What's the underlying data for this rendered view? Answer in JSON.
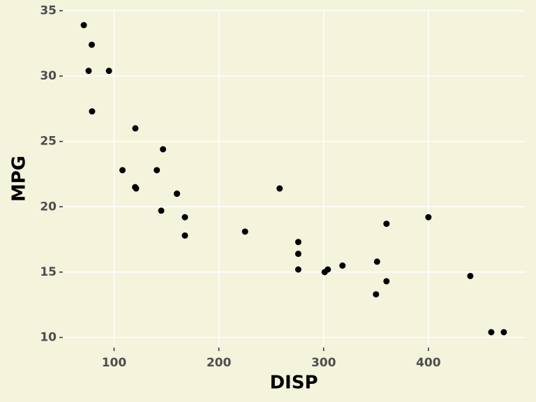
{
  "chart_data": {
    "type": "scatter",
    "x_label": "DISP",
    "y_label": "MPG",
    "color": "#000000",
    "background": "#f4f3dc",
    "grid": true,
    "x": [
      160,
      160,
      108,
      258,
      360,
      225,
      360,
      146.7,
      140.8,
      167.6,
      167.6,
      275.8,
      275.8,
      275.8,
      472,
      460,
      440,
      78.7,
      75.7,
      71.1,
      120.1,
      318,
      304,
      350,
      400,
      79,
      120.3,
      95.1,
      351,
      145,
      301,
      121
    ],
    "values": [
      21.0,
      21.0,
      22.8,
      21.4,
      18.7,
      18.1,
      14.3,
      24.4,
      22.8,
      19.2,
      17.8,
      16.4,
      17.3,
      15.2,
      10.4,
      10.4,
      14.7,
      32.4,
      30.4,
      33.9,
      21.5,
      15.5,
      15.2,
      13.3,
      19.2,
      27.3,
      26.0,
      30.4,
      15.8,
      19.7,
      15.0,
      21.4
    ],
    "xlim": [
      51.06,
      492.05
    ],
    "xticks": [
      100,
      200,
      300,
      400
    ],
    "ylim": [
      9.225,
      35.075
    ],
    "yticks": [
      10,
      15,
      20,
      25,
      30,
      35
    ]
  }
}
